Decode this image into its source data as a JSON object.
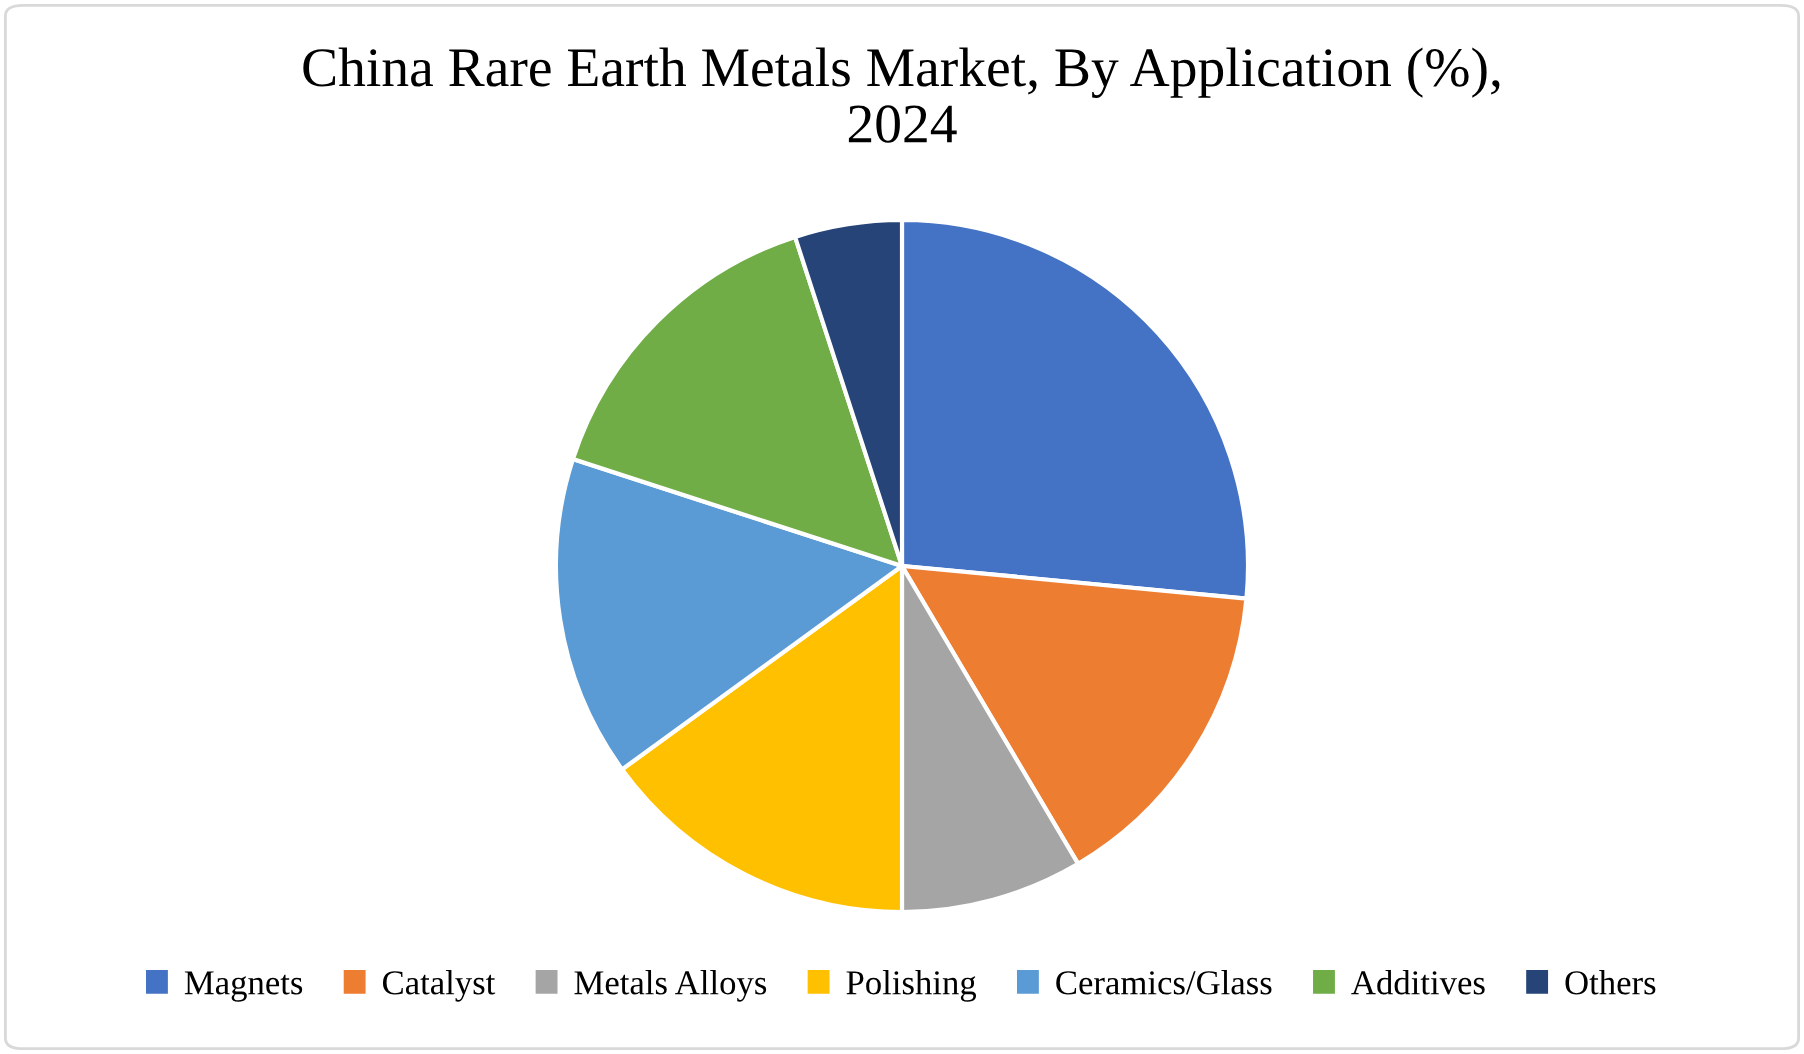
{
  "chart_data": {
    "type": "pie",
    "title": "China Rare Earth Metals Market, By Application (%),\n2024",
    "categories": [
      "Magnets",
      "Catalyst",
      "Metals Alloys",
      "Polishing",
      "Ceramics/Glass",
      "Additives",
      "Others"
    ],
    "values": [
      26.5,
      15,
      8.5,
      15,
      15,
      15,
      5
    ],
    "colors": [
      "#4472c4",
      "#ed7d31",
      "#a5a5a5",
      "#ffc000",
      "#5b9bd5",
      "#70ad47",
      "#264478"
    ],
    "legend": "bottom"
  }
}
